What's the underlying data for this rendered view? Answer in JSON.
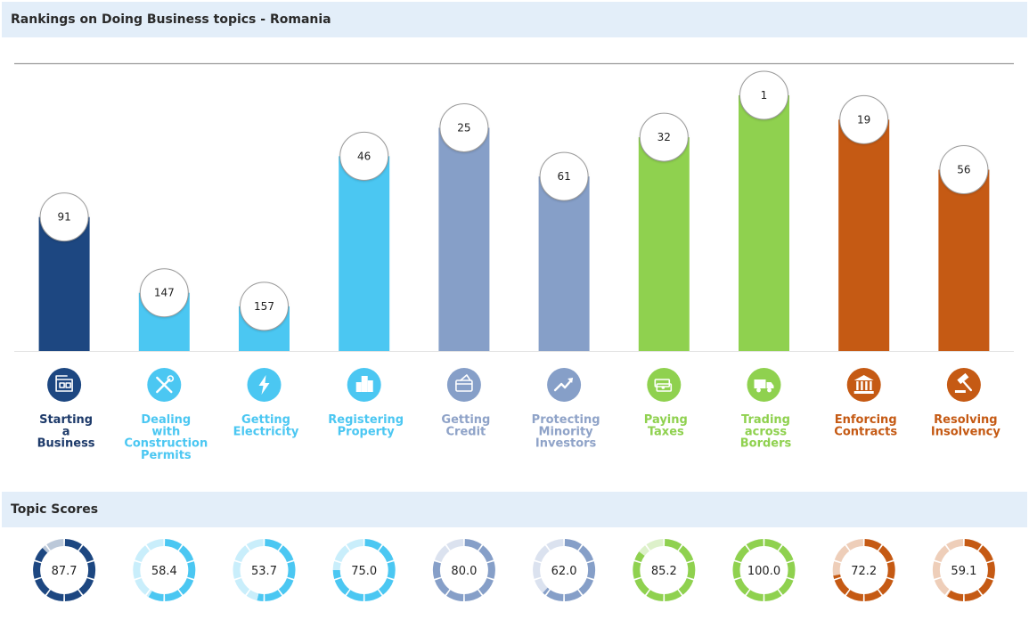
{
  "header": {
    "title": "Rankings on Doing Business topics - Romania"
  },
  "scores_header": {
    "title": "Topic Scores"
  },
  "chart_data": {
    "type": "bar",
    "title": "Rankings on Doing Business topics - Romania",
    "y_meaning": "rank (lower is better; bar height inverted)",
    "rank_range": [
      1,
      190
    ],
    "categories": [
      "Starting a Business",
      "Dealing with Construction Permits",
      "Getting Electricity",
      "Registering Property",
      "Getting Credit",
      "Protecting Minority Investors",
      "Paying Taxes",
      "Trading across Borders",
      "Enforcing Contracts",
      "Resolving Insolvency"
    ],
    "label_lines": [
      [
        "Starting",
        "a",
        "Business"
      ],
      [
        "Dealing",
        "with",
        "Construction",
        "Permits"
      ],
      [
        "Getting",
        "Electricity"
      ],
      [
        "Registering",
        "Property"
      ],
      [
        "Getting",
        "Credit"
      ],
      [
        "Protecting",
        "Minority",
        "Investors"
      ],
      [
        "Paying",
        "Taxes"
      ],
      [
        "Trading",
        "across",
        "Borders"
      ],
      [
        "Enforcing",
        "Contracts"
      ],
      [
        "Resolving",
        "Insolvency"
      ]
    ],
    "ranks": [
      91,
      147,
      157,
      46,
      25,
      61,
      32,
      1,
      19,
      56
    ],
    "scores": [
      87.7,
      58.4,
      53.7,
      75.0,
      80.0,
      62.0,
      85.2,
      100.0,
      72.2,
      59.1
    ],
    "bar_colors": [
      "#1d4781",
      "#4bc7f2",
      "#4bc7f2",
      "#4bc7f2",
      "#869fc8",
      "#869fc8",
      "#8fd14f",
      "#8fd14f",
      "#c55a14",
      "#c55a14"
    ],
    "label_colors": [
      "#1d3a6a",
      "#4bc7f2",
      "#4bc7f2",
      "#4bc7f2",
      "#8fa3c8",
      "#8fa3c8",
      "#8fd14f",
      "#8fd14f",
      "#c55a14",
      "#c55a14"
    ],
    "icons": [
      "building-icon",
      "wrench-screwdriver-icon",
      "lightning-bolt-icon",
      "city-buildings-icon",
      "credit-card-icon",
      "trend-arrow-icon",
      "money-stack-icon",
      "truck-icon",
      "courthouse-icon",
      "gavel-icon"
    ]
  }
}
